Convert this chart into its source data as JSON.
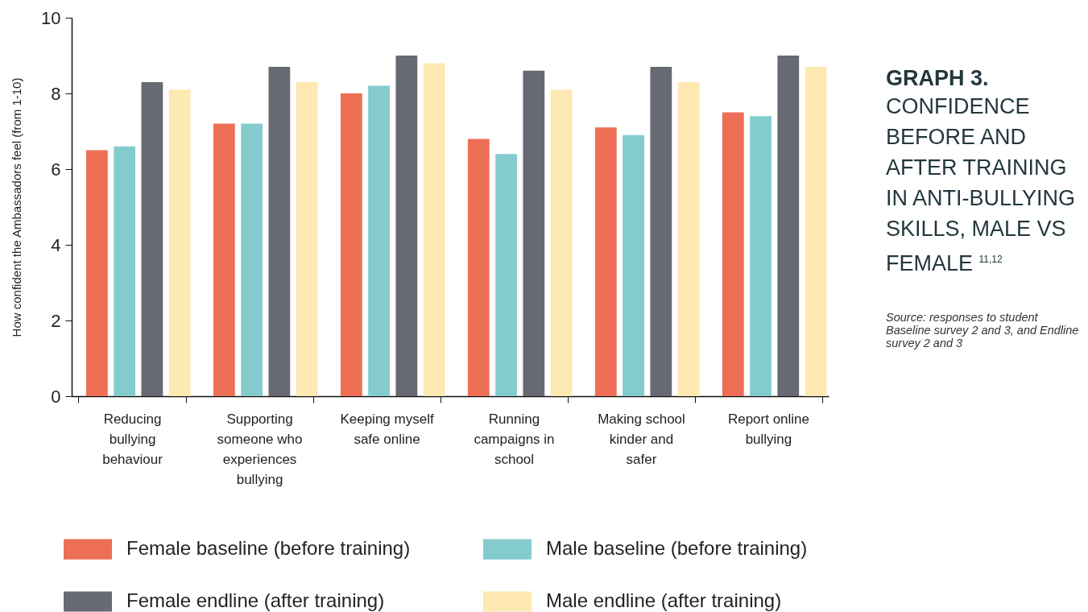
{
  "chart_data": {
    "type": "bar",
    "title": "GRAPH 3.",
    "subtitle": "CONFIDENCE BEFORE AND AFTER TRAINING IN ANTI-BULLYING SKILLS, MALE VS FEMALE $^{11,12}$",
    "ylabel": "How confident the Ambassadors feel (from 1-10)",
    "categories": [
      "Reducing bullying behaviour",
      "Supporting someone who experiences bullying",
      "Keeping myself safe online",
      "Running campaigns in school",
      "Making school kinder and safer",
      "Report online bullying"
    ],
    "series": [
      {
        "name": "Female baseline (before training)",
        "color": "#ec6f55",
        "values": [
          6.5,
          7.2,
          8.0,
          6.8,
          7.1,
          7.5
        ]
      },
      {
        "name": "Male baseline (before training)",
        "color": "#84cbce",
        "values": [
          6.6,
          7.2,
          8.2,
          6.4,
          6.9,
          7.4
        ]
      },
      {
        "name": "Female endline (after training)",
        "color": "#676a72",
        "values": [
          8.3,
          8.7,
          9.0,
          8.6,
          8.7,
          9.0
        ]
      },
      {
        "name": "Male endline (after training)",
        "color": "#fde9b1",
        "values": [
          8.1,
          8.3,
          8.8,
          8.1,
          8.3,
          8.7
        ]
      }
    ],
    "ylim": [
      0,
      10
    ],
    "yticks": [
      0,
      2,
      4,
      6,
      8,
      10
    ],
    "grid": false,
    "legend": "bottom",
    "annotations": [
      "Source: responses to student Baseline survey 2 and 3, and Endline survey 2 and 3"
    ]
  }
}
